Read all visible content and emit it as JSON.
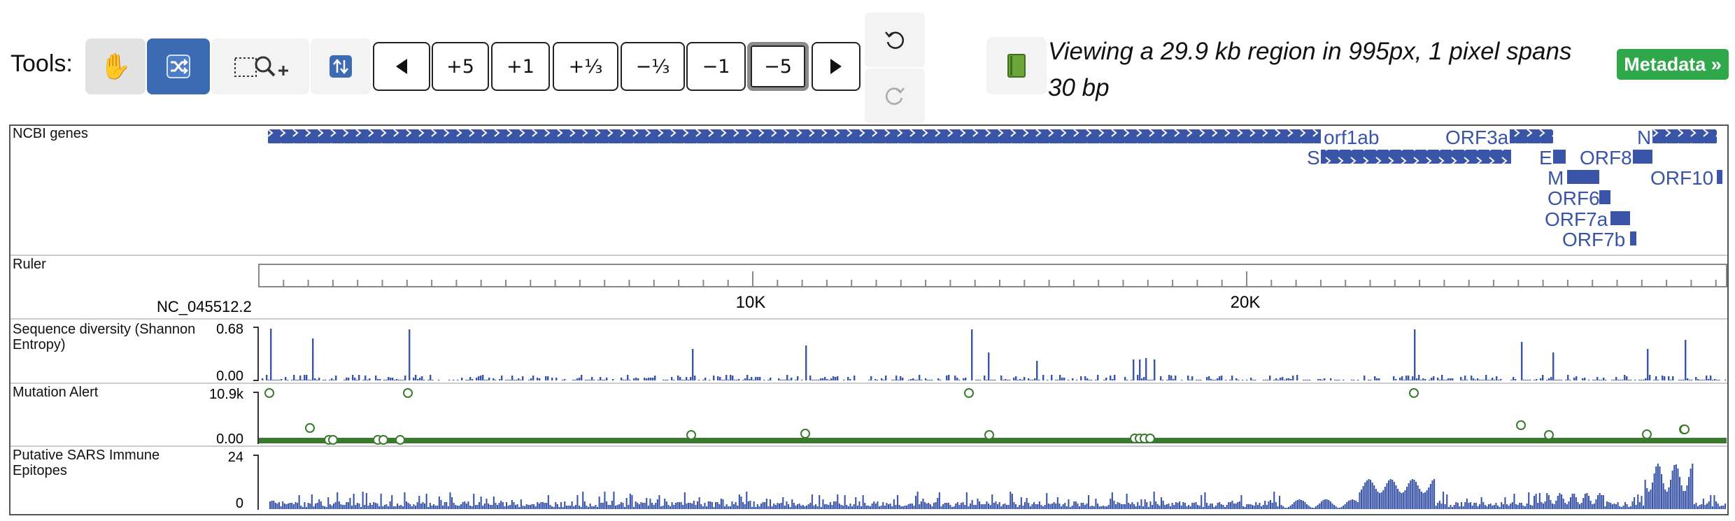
{
  "toolbar": {
    "tools_label": "Tools:",
    "pan_icon": "hand-icon",
    "select_icon": "shuffle-icon",
    "zoom_icon": "rubberband-zoom-icon",
    "swap_icon": "swap-icon",
    "nav": [
      "+5",
      "+1",
      "+⅓",
      "−⅓",
      "−1",
      "−5"
    ],
    "selected_nav": "−5",
    "undo_icon": "undo-icon",
    "redo_icon": "redo-icon",
    "book_icon": "book-icon",
    "view_text": "Viewing a 29.9 kb region in 995px, 1 pixel spans 30 bp",
    "metadata_label": "Metadata »",
    "accent": "#3a6bb3",
    "metadata_color": "#2fa84a"
  },
  "tracks": {
    "genes": {
      "label": "NCBI genes",
      "color": "#3a55a8",
      "names": [
        "orf1ab",
        "S",
        "ORF3a",
        "E",
        "ORF8",
        "M",
        "N",
        "ORF10",
        "ORF6",
        "ORF7a",
        "ORF7b"
      ]
    },
    "ruler": {
      "label": "Ruler",
      "chrom": "NC_045512.2",
      "ticks": [
        "10K",
        "20K"
      ]
    },
    "diversity": {
      "label": "Sequence diversity (Shannon Entropy)",
      "max": "0.68",
      "min": "0.00",
      "color": "#3a55a8"
    },
    "mutation": {
      "label": "Mutation Alert",
      "max": "10.9k",
      "min": "0.00",
      "color": "#3b7a2e"
    },
    "epitopes": {
      "label": "Putative SARS Immune Epitopes",
      "max": "24",
      "min": "0",
      "color": "#3a55a8"
    }
  }
}
